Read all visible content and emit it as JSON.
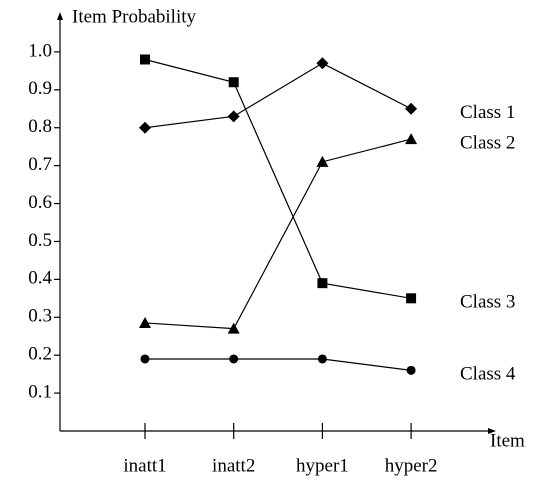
{
  "chart_data": {
    "type": "line",
    "ylabel": "Item Probability",
    "xlabel": "Item",
    "categories": [
      "inatt1",
      "inatt2",
      "hyper1",
      "hyper2"
    ],
    "series": [
      {
        "name": "Class 1",
        "color": "#000000",
        "marker": "diamond",
        "values": [
          0.8,
          0.83,
          0.97,
          0.85
        ]
      },
      {
        "name": "Class 2",
        "color": "#000000",
        "marker": "triangle",
        "values": [
          0.285,
          0.27,
          0.71,
          0.77
        ]
      },
      {
        "name": "Class 3",
        "color": "#000000",
        "marker": "square",
        "values": [
          0.98,
          0.92,
          0.39,
          0.35
        ]
      },
      {
        "name": "Class 4",
        "color": "#000000",
        "marker": "circle",
        "values": [
          0.19,
          0.19,
          0.19,
          0.16
        ]
      }
    ],
    "ylim": [
      0,
      1.1
    ],
    "yticks": [
      {
        "value": 0.1,
        "label": "0.1"
      },
      {
        "value": 0.2,
        "label": "0.2"
      },
      {
        "value": 0.3,
        "label": "0.3"
      },
      {
        "value": 0.4,
        "label": "0.4"
      },
      {
        "value": 0.5,
        "label": "0.5"
      },
      {
        "value": 0.6,
        "label": "0.6"
      },
      {
        "value": 0.7,
        "label": "0.7"
      },
      {
        "value": 0.8,
        "label": "0.8"
      },
      {
        "value": 0.9,
        "label": "0.9"
      },
      {
        "value": 1.0,
        "label": "1.0"
      }
    ]
  }
}
